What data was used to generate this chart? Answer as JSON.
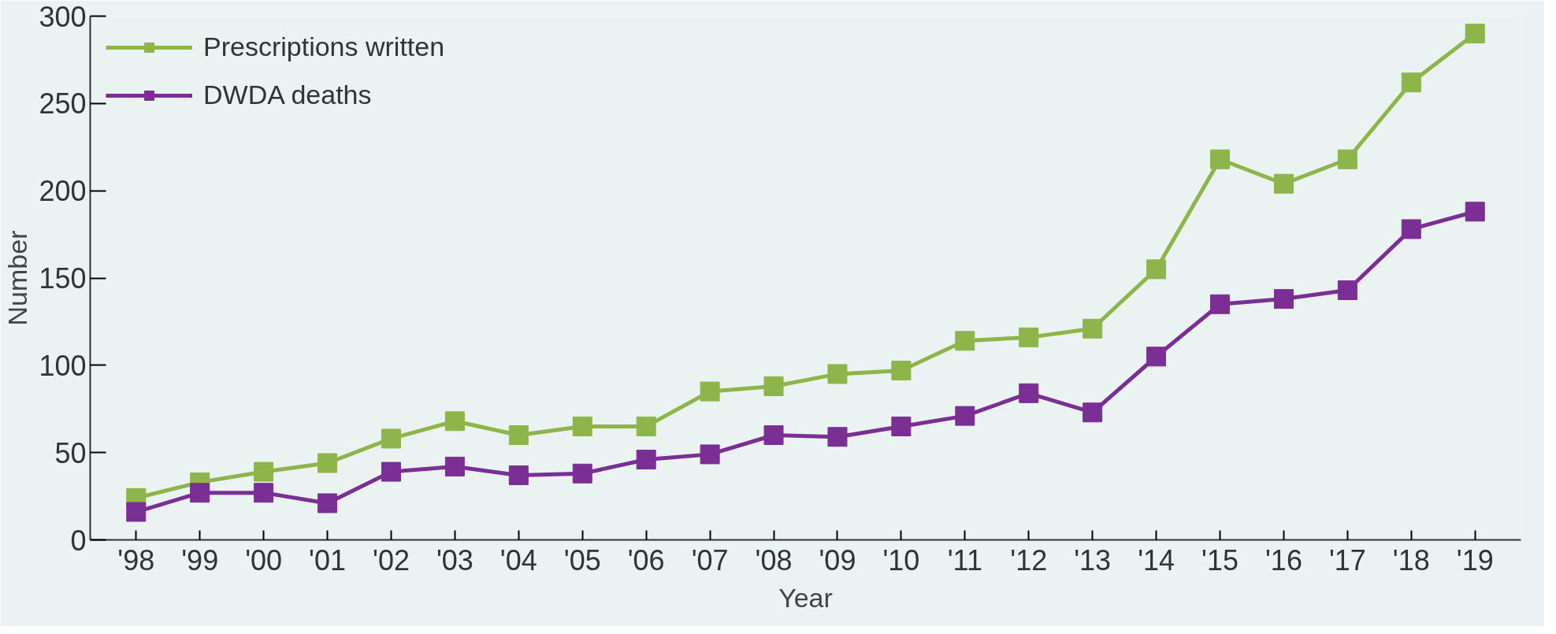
{
  "chart_data": {
    "type": "line",
    "xlabel": "Year",
    "ylabel": "Number",
    "categories": [
      "'98",
      "'99",
      "'00",
      "'01",
      "'02",
      "'03",
      "'04",
      "'05",
      "'06",
      "'07",
      "'08",
      "'09",
      "'10",
      "'11",
      "'12",
      "'13",
      "'14",
      "'15",
      "'16",
      "'17",
      "'18",
      "'19"
    ],
    "series": [
      {
        "name": "Prescriptions written",
        "color": "#8db54a",
        "values": [
          24,
          33,
          39,
          44,
          58,
          68,
          60,
          65,
          65,
          85,
          88,
          95,
          97,
          114,
          116,
          121,
          155,
          218,
          204,
          218,
          262,
          290
        ]
      },
      {
        "name": "DWDA deaths",
        "color": "#7b2f94",
        "values": [
          16,
          27,
          27,
          21,
          39,
          42,
          37,
          38,
          46,
          49,
          60,
          59,
          65,
          71,
          84,
          73,
          105,
          135,
          138,
          143,
          178,
          188
        ]
      }
    ],
    "ylim": [
      0,
      300
    ],
    "yticks": [
      0,
      50,
      100,
      150,
      200,
      250,
      300
    ],
    "grid": false,
    "legend": "top left",
    "marker": "square",
    "line_style": "solid"
  }
}
